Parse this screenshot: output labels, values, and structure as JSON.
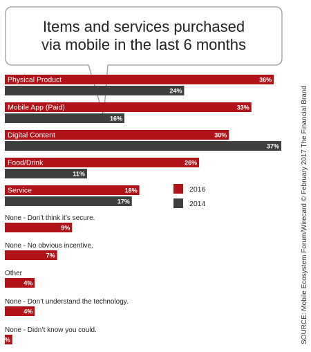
{
  "colors": {
    "series_2016": "#b01418",
    "series_2014": "#3f3f3f",
    "bubble_stroke": "#9a9a9a"
  },
  "chart_data": {
    "type": "bar",
    "orientation": "horizontal",
    "title_lines": [
      "Items and services purchased",
      "via mobile in the last 6 months"
    ],
    "categories": [
      "Physical Product",
      "Mobile App (Paid)",
      "Digital Content",
      "Food/Drink",
      "Service",
      "None - Don’t think it’s secure.",
      "None - No obvious incentive.",
      "Other",
      "None - Don’t understand the technology.",
      "None - Didn’t know you could."
    ],
    "series": [
      {
        "name": "2016",
        "values": [
          36,
          33,
          30,
          26,
          18,
          9,
          7,
          4,
          4,
          1
        ]
      },
      {
        "name": "2014",
        "values": [
          24,
          16,
          37,
          11,
          17,
          null,
          null,
          null,
          null,
          null
        ]
      }
    ],
    "value_suffix": "%",
    "legend": {
      "position": "right-middle",
      "entries": [
        "2016",
        "2014"
      ]
    },
    "source": "SOURCE: Mobile Ecosystem Forum/Wirecard © February 2017 The Financial Brand"
  }
}
